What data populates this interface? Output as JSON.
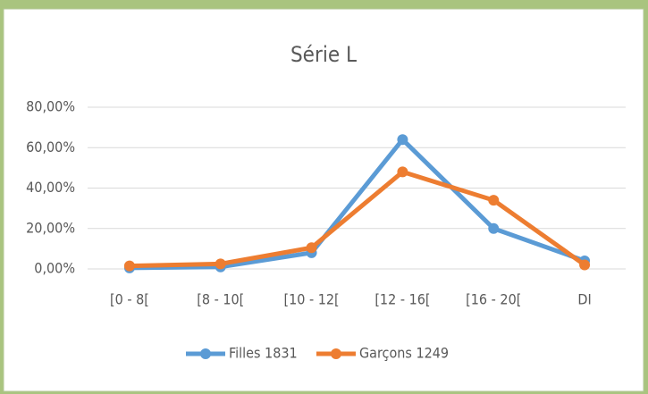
{
  "chart_data": {
    "type": "line",
    "title": "Série L",
    "categories": [
      "[0 - 8[",
      "[8 - 10[",
      "[10 - 12[",
      "[12 - 16[",
      "[16 - 20[",
      "DI"
    ],
    "series": [
      {
        "name": "Filles 1831",
        "color": "#5b9bd5",
        "values": [
          0.5,
          1,
          8,
          64,
          20,
          4
        ]
      },
      {
        "name": "Garçons 1249",
        "color": "#ed7d31",
        "values": [
          1.5,
          2.5,
          10.5,
          48,
          34,
          2
        ]
      }
    ],
    "ylim": [
      0,
      80
    ],
    "yticks": [
      {
        "value": 0,
        "label": "0,00%"
      },
      {
        "value": 20,
        "label": "20,00%"
      },
      {
        "value": 40,
        "label": "40,00%"
      },
      {
        "value": 60,
        "label": "60,00%"
      },
      {
        "value": 80,
        "label": "80,00%"
      }
    ],
    "grid": true,
    "legend": "bottom"
  }
}
